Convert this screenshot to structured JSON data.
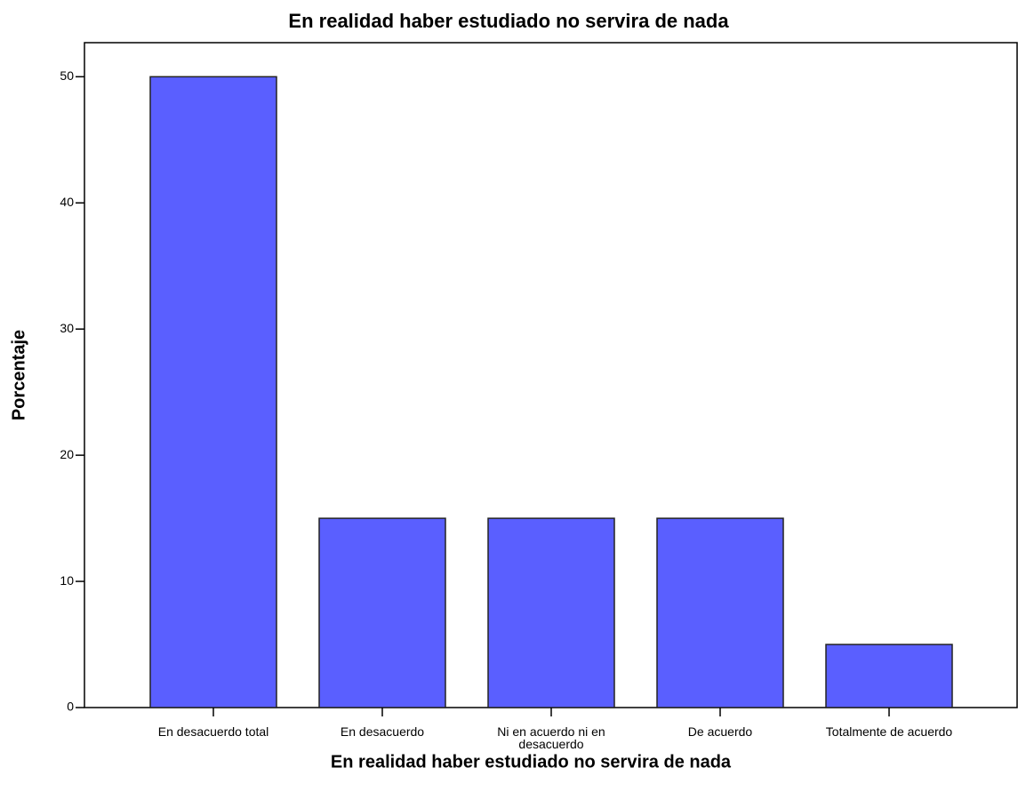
{
  "chart_data": {
    "type": "bar",
    "title": "En realidad haber estudiado no servira de nada",
    "x_label": "En realidad haber estudiado no servira de nada",
    "y_label": "Porcentaje",
    "categories": [
      "En desacuerdo total",
      "En desacuerdo",
      "Ni en acuerdo ni en desacuerdo",
      "De acuerdo",
      "Totalmente de acuerdo"
    ],
    "values": [
      50,
      15,
      15,
      15,
      5
    ],
    "color": "#5a5fff",
    "ylim": [
      0,
      52.7
    ],
    "yticks": [
      0,
      10,
      20,
      30,
      40,
      50
    ]
  }
}
